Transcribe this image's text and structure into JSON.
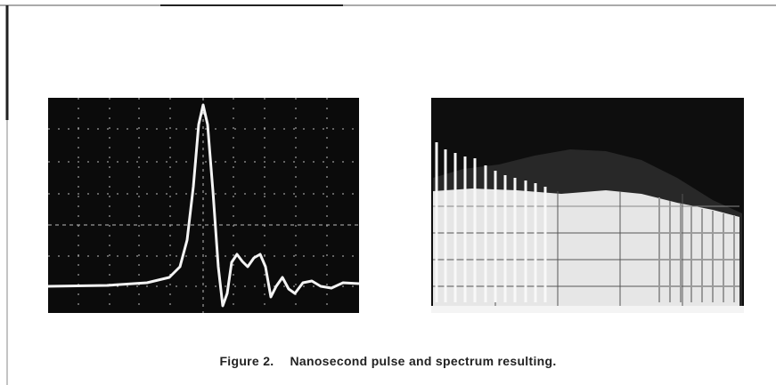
{
  "figure": {
    "label": "Figure 2.",
    "caption": "Nanosecond pulse and spectrum resulting."
  }
}
